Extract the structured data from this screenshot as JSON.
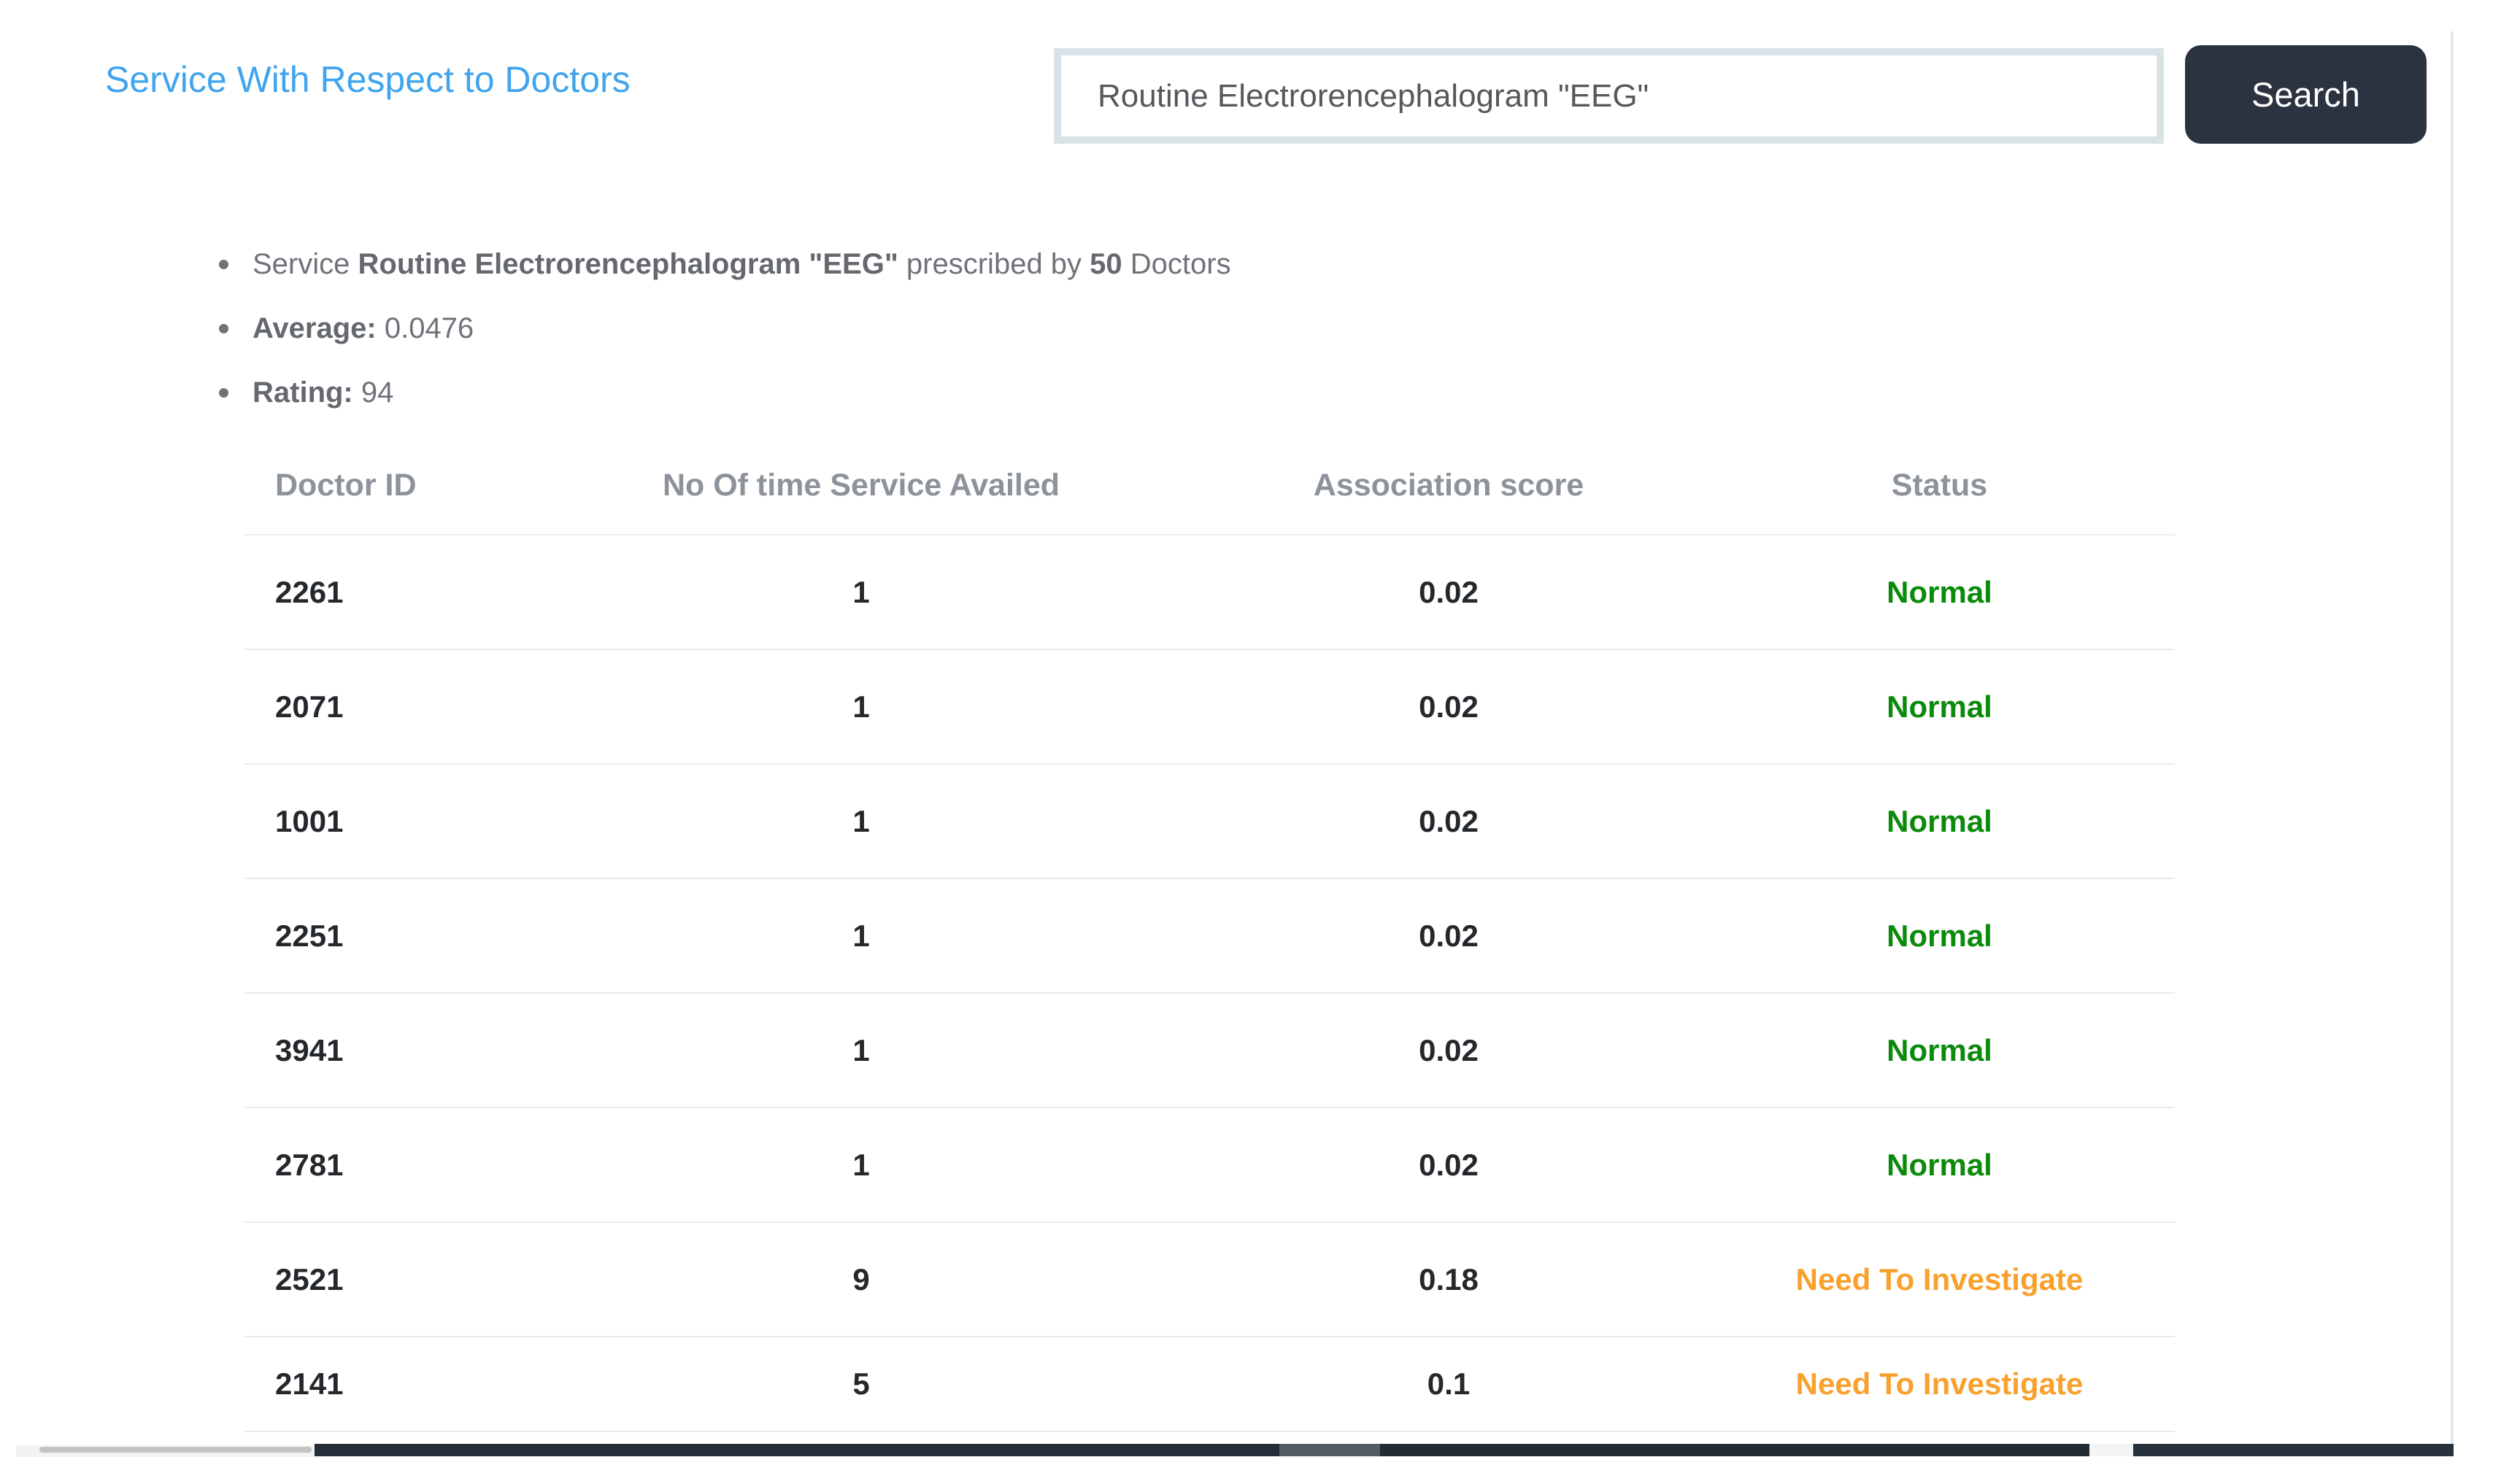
{
  "page": {
    "title_link": "Service With Respect to Doctors"
  },
  "search": {
    "value": "Routine Electrorencephalogram \"EEG\"",
    "button_label": "Search"
  },
  "summary": {
    "bullets": [
      {
        "segments": [
          {
            "text": "Service ",
            "bold": false
          },
          {
            "text": "Routine Electrorencephalogram \"EEG\"",
            "bold": true
          },
          {
            "text": " prescribed by ",
            "bold": false
          },
          {
            "text": "50",
            "bold": true
          },
          {
            "text": " Doctors",
            "bold": false
          }
        ]
      },
      {
        "segments": [
          {
            "text": "Average:",
            "bold": true
          },
          {
            "text": " 0.0476",
            "bold": false
          }
        ]
      },
      {
        "segments": [
          {
            "text": "Rating:",
            "bold": true
          },
          {
            "text": " 94",
            "bold": false
          }
        ]
      }
    ]
  },
  "table": {
    "headers": [
      "Doctor ID",
      "No Of time Service Availed",
      "Association score",
      "Status"
    ],
    "rows": [
      {
        "doctor_id": "2261",
        "times_availed": "1",
        "association_score": "0.02",
        "status": "Normal",
        "status_color": "green"
      },
      {
        "doctor_id": "2071",
        "times_availed": "1",
        "association_score": "0.02",
        "status": "Normal",
        "status_color": "green"
      },
      {
        "doctor_id": "1001",
        "times_availed": "1",
        "association_score": "0.02",
        "status": "Normal",
        "status_color": "green"
      },
      {
        "doctor_id": "2251",
        "times_availed": "1",
        "association_score": "0.02",
        "status": "Normal",
        "status_color": "green"
      },
      {
        "doctor_id": "3941",
        "times_availed": "1",
        "association_score": "0.02",
        "status": "Normal",
        "status_color": "green"
      },
      {
        "doctor_id": "2781",
        "times_availed": "1",
        "association_score": "0.02",
        "status": "Normal",
        "status_color": "green"
      },
      {
        "doctor_id": "2521",
        "times_availed": "9",
        "association_score": "0.18",
        "status": "Need To Investigate",
        "status_color": "orange"
      },
      {
        "doctor_id": "2141",
        "times_availed": "5",
        "association_score": "0.1",
        "status": "Need To Investigate",
        "status_color": "orange"
      }
    ]
  },
  "colors": {
    "link_blue": "#41a4ee",
    "button_dark": "#2b3240",
    "status_normal_green": "#0b8a0b",
    "status_investigate_orange": "#f9a12e"
  }
}
